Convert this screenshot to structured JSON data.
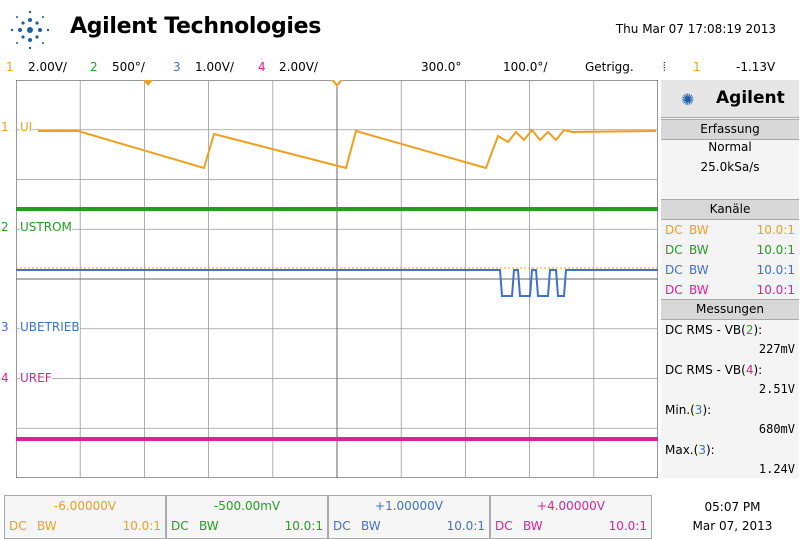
{
  "header": {
    "brand": "Agilent Technologies",
    "timestamp": "Thu Mar 07 17:08:19 2013"
  },
  "status_bar": {
    "ch1_num": "1",
    "ch1_scale": "2.00V/",
    "ch2_num": "2",
    "ch2_scale": "500°/",
    "ch3_num": "3",
    "ch3_scale": "1.00V/",
    "ch4_num": "4",
    "ch4_scale": "2.00V/",
    "delay": "300.0°",
    "timebase": "100.0°/",
    "trigger_mode": "Getrigg.",
    "trigger_source": "1",
    "trigger_level": "-1.13V"
  },
  "traces": {
    "ch1_label": "UI",
    "ch2_label": "USTROM",
    "ch3_label": "UBETRIEB",
    "ch4_label": "UREF",
    "ch1_marker": "1",
    "ch2_marker": "2",
    "ch3_marker": "3",
    "ch4_marker": "4"
  },
  "panel": {
    "logo": "Agilent",
    "acq_header": "Erfassung",
    "acq_mode": "Normal",
    "acq_rate": "25.0kSa/s",
    "channels_header": "Kanäle",
    "channels": [
      {
        "coupling": "DC",
        "bw": "BW",
        "probe": "10.0:1"
      },
      {
        "coupling": "DC",
        "bw": "BW",
        "probe": "10.0:1"
      },
      {
        "coupling": "DC",
        "bw": "BW",
        "probe": "10.0:1"
      },
      {
        "coupling": "DC",
        "bw": "BW",
        "probe": "10.0:1"
      }
    ],
    "meas_header": "Messungen",
    "m1_label": "DC RMS - VB(",
    "m1_ch": "2",
    "m1_value": "227mV",
    "m2_label": "DC RMS - VB(",
    "m2_ch": "4",
    "m2_value": "2.51V",
    "m3_label": "Min.(",
    "m3_ch": "3",
    "m3_value": "680mV",
    "m4_label": "Max.(",
    "m4_ch": "3",
    "m4_value": "1.24V",
    "close_paren": "):"
  },
  "bottom": {
    "ch1_offset": "-6.00000V",
    "ch2_offset": "-500.00mV",
    "ch3_offset": "+1.00000V",
    "ch4_offset": "+4.00000V",
    "coupling": "DC",
    "bw": "BW",
    "probe": "10.0:1",
    "time": "05:07 PM",
    "date": "Mar 07, 2013"
  },
  "colors": {
    "ch1": "#f0a020",
    "ch2": "#20a020",
    "ch3": "#4070d0",
    "ch4": "#e0209a"
  }
}
